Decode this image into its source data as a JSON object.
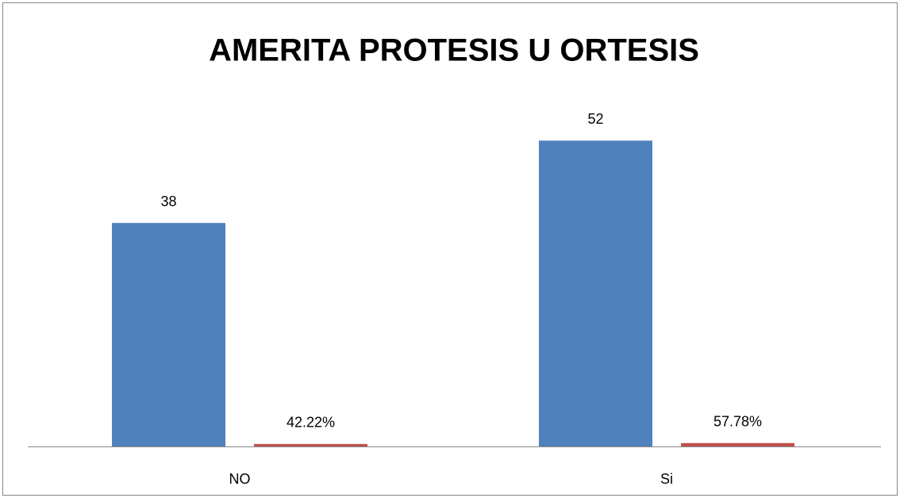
{
  "chart_data": {
    "type": "bar",
    "title": "AMERITA PROTESIS U ORTESIS",
    "categories": [
      "NO",
      "Si"
    ],
    "series": [
      {
        "color": "#4f81bd",
        "values": [
          38,
          52
        ]
      },
      {
        "color": "#c0504d",
        "values": [
          0.4222,
          0.5778
        ],
        "value_labels": [
          "42.22%",
          "57.78%"
        ]
      }
    ],
    "ylim": [
      0,
      60
    ]
  }
}
